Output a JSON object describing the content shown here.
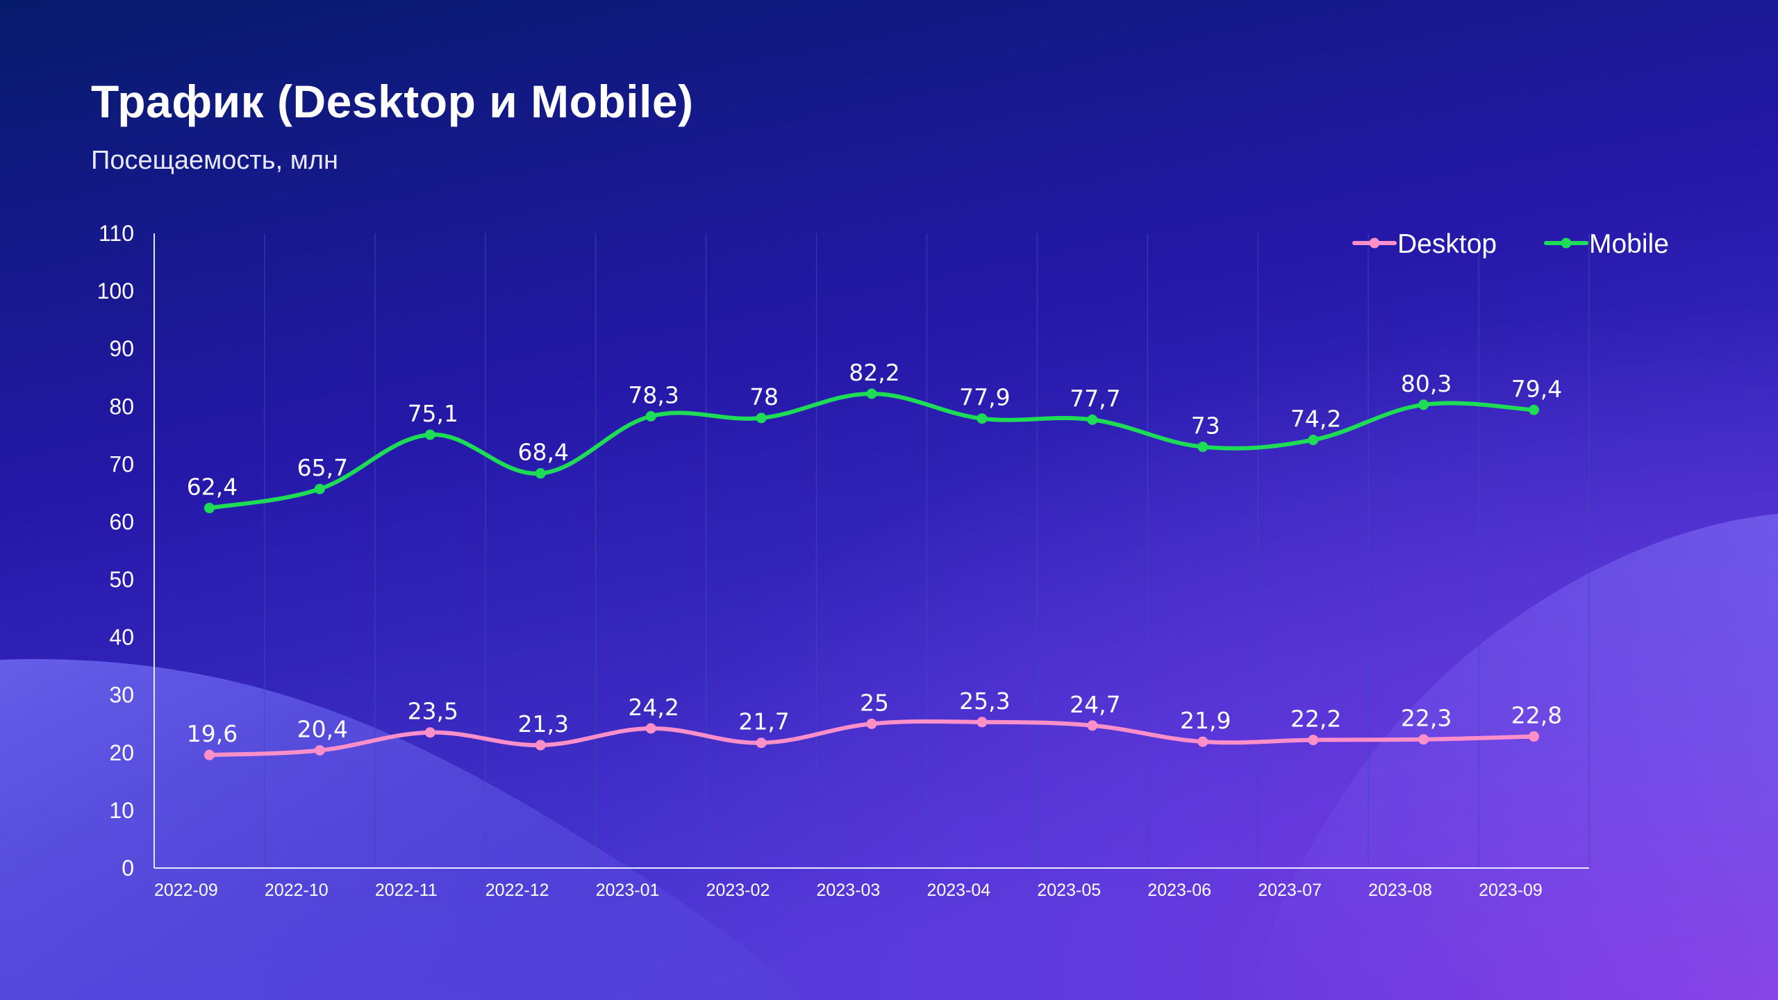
{
  "colors": {
    "bg_top": "#061a6b",
    "bg_mid": "#2a1ea8",
    "bg_purple": "#8b34e0",
    "desktop": "#ff8fc8",
    "mobile": "#1edc55",
    "grid": "#3a4bb8",
    "axis": "#e8e8ff"
  },
  "header": {
    "title": "Трафик (Desktop и Mobile)",
    "subtitle": "Посещаемость, млн"
  },
  "chart_data": {
    "type": "line",
    "title": "Трафик (Desktop и Mobile)",
    "ylabel": "Посещаемость, млн",
    "xlabel": "",
    "ylim": [
      0,
      110
    ],
    "yticks": [
      0,
      10,
      20,
      30,
      40,
      50,
      60,
      70,
      80,
      90,
      100,
      110
    ],
    "categories": [
      "2022-09",
      "2022-10",
      "2022-11",
      "2022-12",
      "2023-01",
      "2023-02",
      "2023-03",
      "2023-04",
      "2023-05",
      "2023-06",
      "2023-07",
      "2023-08",
      "2023-09"
    ],
    "legend_position": "top-right",
    "series": [
      {
        "name": "Desktop",
        "color": "#ff8fc8",
        "values": [
          19.6,
          20.4,
          23.5,
          21.3,
          24.2,
          21.7,
          25,
          25.3,
          24.7,
          21.9,
          22.2,
          22.3,
          22.8
        ],
        "labels": [
          "19,6",
          "20,4",
          "23,5",
          "21,3",
          "24,2",
          "21,7",
          "25",
          "25,3",
          "24,7",
          "21,9",
          "22,2",
          "22,3",
          "22,8"
        ]
      },
      {
        "name": "Mobile",
        "color": "#1edc55",
        "values": [
          62.4,
          65.7,
          75.1,
          68.4,
          78.3,
          78,
          82.2,
          77.9,
          77.7,
          73,
          74.2,
          80.3,
          79.4
        ],
        "labels": [
          "62,4",
          "65,7",
          "75,1",
          "68,4",
          "78,3",
          "78",
          "82,2",
          "77,9",
          "77,7",
          "73",
          "74,2",
          "80,3",
          "79,4"
        ]
      }
    ]
  }
}
